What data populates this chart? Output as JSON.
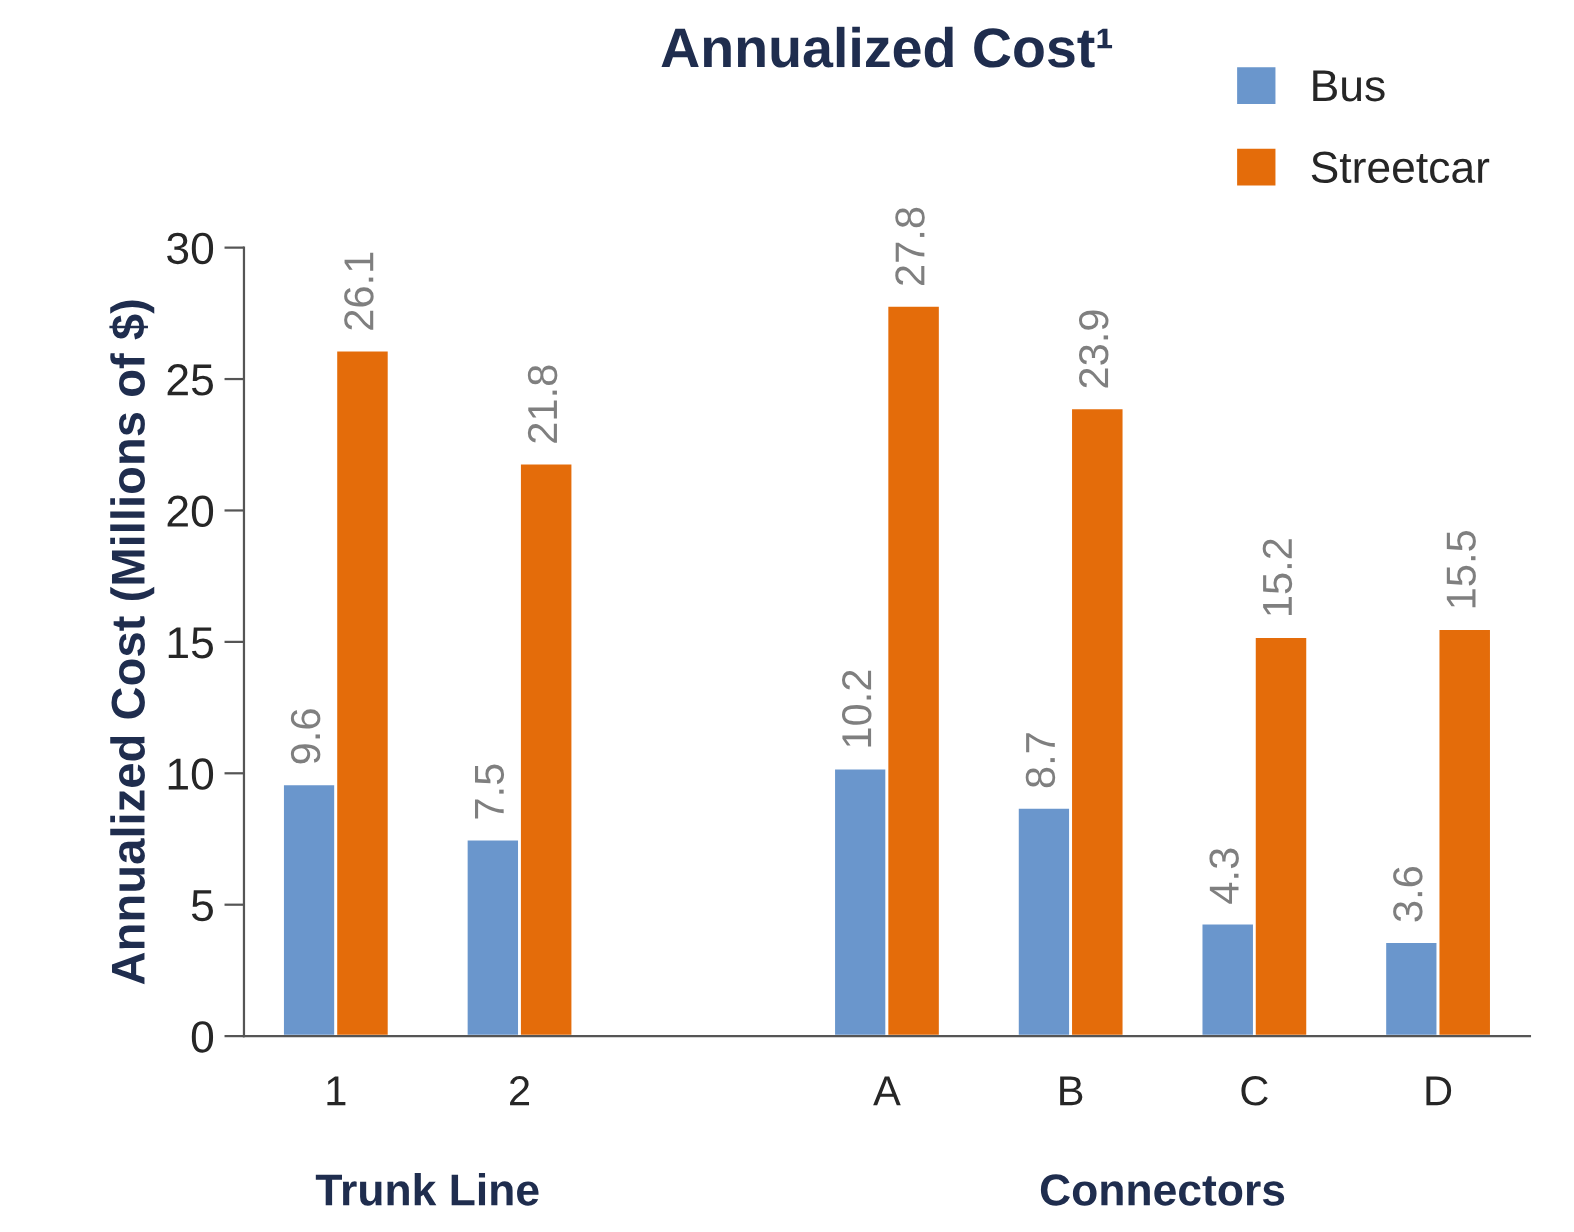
{
  "chart_data": {
    "type": "bar",
    "title": "Annualized Cost¹",
    "ylabel": "Annualized Cost (Millions of $)",
    "categories": [
      "1",
      "2",
      null,
      "A",
      "B",
      "C",
      "D"
    ],
    "series": [
      {
        "name": "Bus",
        "color": "#6a96cc",
        "values": [
          9.6,
          7.5,
          null,
          10.2,
          8.7,
          4.3,
          3.6
        ]
      },
      {
        "name": "Streetcar",
        "color": "#e46c0a",
        "values": [
          26.1,
          21.8,
          null,
          27.8,
          23.9,
          15.2,
          15.5
        ]
      }
    ],
    "ylim": [
      0,
      30
    ],
    "yticks": [
      0,
      5,
      10,
      15,
      20,
      25,
      30
    ],
    "grid": false,
    "legend": "top right",
    "data_labels": true,
    "annotations": [
      "Trunk Line",
      "Connectors"
    ]
  }
}
